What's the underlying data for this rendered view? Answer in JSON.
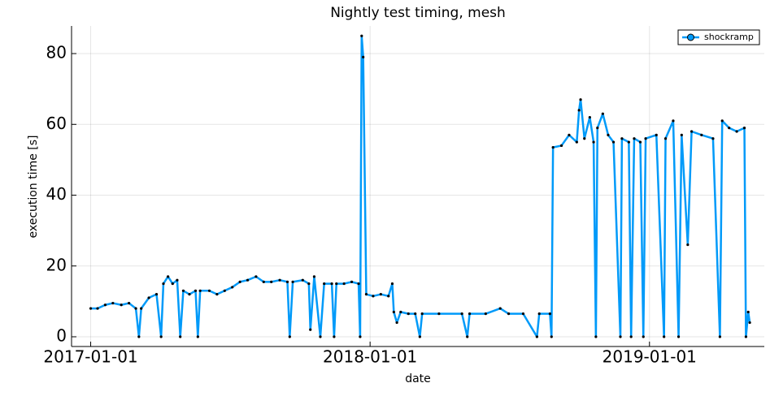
{
  "chart_data": {
    "type": "line",
    "title": "Nightly test timing, mesh",
    "xlabel": "date",
    "ylabel": "execution time [s]",
    "x": [
      "2017-01-01",
      "2017-01-10",
      "2017-01-20",
      "2017-01-30",
      "2017-02-10",
      "2017-02-20",
      "2017-03-01",
      "2017-03-05",
      "2017-03-08",
      "2017-03-18",
      "2017-03-28",
      "2017-04-03",
      "2017-04-06",
      "2017-04-12",
      "2017-04-18",
      "2017-04-24",
      "2017-04-28",
      "2017-05-02",
      "2017-05-10",
      "2017-05-18",
      "2017-05-21",
      "2017-05-24",
      "2017-06-05",
      "2017-06-15",
      "2017-06-25",
      "2017-07-05",
      "2017-07-15",
      "2017-07-25",
      "2017-08-05",
      "2017-08-15",
      "2017-08-25",
      "2017-09-05",
      "2017-09-15",
      "2017-09-18",
      "2017-09-22",
      "2017-10-05",
      "2017-10-13",
      "2017-10-15",
      "2017-10-20",
      "2017-10-28",
      "2017-11-02",
      "2017-11-12",
      "2017-11-15",
      "2017-11-18",
      "2017-11-28",
      "2017-12-08",
      "2017-12-17",
      "2017-12-19",
      "2017-12-21",
      "2017-12-23",
      "2017-12-27",
      "2018-01-05",
      "2018-01-15",
      "2018-01-25",
      "2018-01-30",
      "2018-02-01",
      "2018-02-05",
      "2018-02-10",
      "2018-02-20",
      "2018-03-01",
      "2018-03-07",
      "2018-03-10",
      "2018-04-01",
      "2018-05-01",
      "2018-05-08",
      "2018-05-11",
      "2018-06-01",
      "2018-06-20",
      "2018-07-01",
      "2018-07-20",
      "2018-08-07",
      "2018-08-10",
      "2018-08-24",
      "2018-08-26",
      "2018-08-28",
      "2018-09-08",
      "2018-09-18",
      "2018-09-28",
      "2018-10-01",
      "2018-10-03",
      "2018-10-08",
      "2018-10-15",
      "2018-10-20",
      "2018-10-23",
      "2018-10-25",
      "2018-11-01",
      "2018-11-08",
      "2018-11-15",
      "2018-11-24",
      "2018-11-26",
      "2018-12-05",
      "2018-12-08",
      "2018-12-12",
      "2018-12-20",
      "2018-12-24",
      "2018-12-27",
      "2019-01-10",
      "2019-01-20",
      "2019-01-22",
      "2019-02-01",
      "2019-02-08",
      "2019-02-12",
      "2019-02-20",
      "2019-02-25",
      "2019-03-10",
      "2019-03-25",
      "2019-04-03",
      "2019-04-06",
      "2019-04-15",
      "2019-04-25",
      "2019-05-05",
      "2019-05-07",
      "2019-05-10",
      "2019-05-12"
    ],
    "series": [
      {
        "name": "shockramp",
        "color": "#009af9",
        "marker_color": "#000000",
        "values": [
          8,
          8,
          9,
          9.5,
          9,
          9.5,
          8,
          0,
          8,
          11,
          12,
          0,
          15,
          17,
          15,
          16,
          0,
          13,
          12,
          13,
          0,
          13,
          13,
          12,
          13,
          14,
          15.5,
          16,
          17,
          15.5,
          15.5,
          16,
          15.5,
          0,
          15.5,
          16,
          15,
          2,
          17,
          0,
          15,
          15,
          0,
          15,
          15,
          15.5,
          15,
          0,
          85,
          79,
          12,
          11.5,
          12,
          11.5,
          15,
          7,
          4,
          7,
          6.5,
          6.5,
          0,
          6.5,
          6.5,
          6.5,
          0,
          6.5,
          6.5,
          8,
          6.5,
          6.5,
          0,
          6.5,
          6.5,
          0,
          53.5,
          54,
          57,
          55,
          64,
          67,
          56,
          62,
          55,
          0,
          59,
          63,
          57,
          55,
          0,
          56,
          55,
          0,
          56,
          55,
          0,
          56,
          57,
          0,
          56,
          61,
          0,
          57,
          26,
          58,
          57,
          56,
          0,
          61,
          59,
          58,
          59,
          0,
          7,
          4
        ]
      }
    ],
    "xlim": [
      "2016-12-07",
      "2019-05-31"
    ],
    "xticks": [
      "2017-01-01",
      "2018-01-01",
      "2019-01-01"
    ],
    "ylim": [
      -2.75,
      87.8
    ],
    "yticks": [
      0,
      20,
      40,
      60,
      80
    ],
    "grid": true,
    "legend": "top-right"
  }
}
